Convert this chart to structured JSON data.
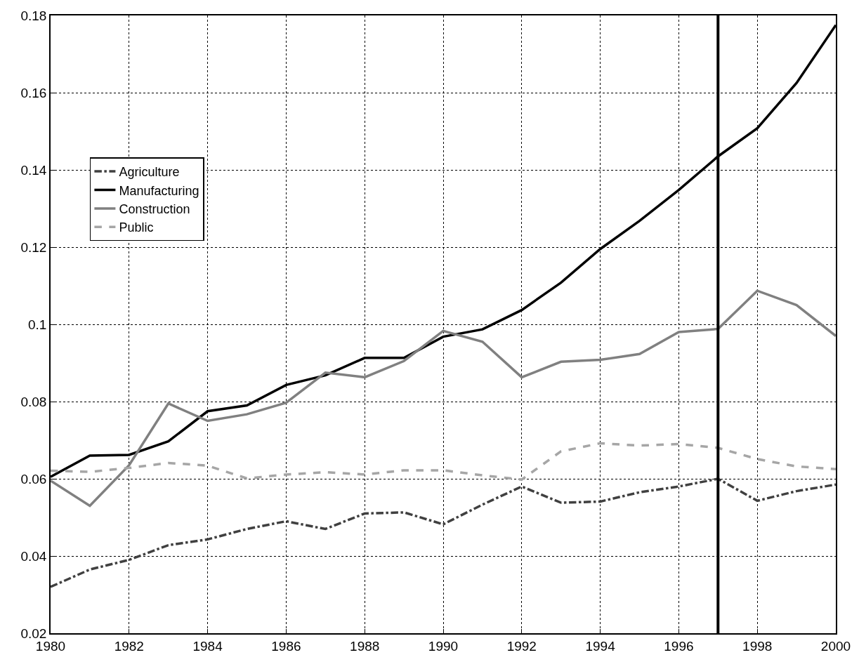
{
  "chart_data": {
    "type": "line",
    "x": [
      1980,
      1981,
      1982,
      1983,
      1984,
      1985,
      1986,
      1987,
      1988,
      1989,
      1990,
      1991,
      1992,
      1993,
      1994,
      1995,
      1996,
      1997,
      1998,
      1999,
      2000
    ],
    "series": [
      {
        "name": "Agriculture",
        "color": "#404040",
        "line_style": "dashdot",
        "values": [
          0.032,
          0.0365,
          0.039,
          0.0428,
          0.0443,
          0.047,
          0.049,
          0.047,
          0.051,
          0.0513,
          0.0482,
          0.0533,
          0.058,
          0.0538,
          0.0541,
          0.0565,
          0.058,
          0.06,
          0.0543,
          0.0568,
          0.0585
        ]
      },
      {
        "name": "Manufacturing",
        "color": "#000000",
        "line_style": "solid",
        "values": [
          0.0605,
          0.066,
          0.0662,
          0.0697,
          0.0775,
          0.079,
          0.0843,
          0.0868,
          0.0913,
          0.0913,
          0.0968,
          0.0987,
          0.1037,
          0.1108,
          0.1195,
          0.1268,
          0.1348,
          0.1435,
          0.1508,
          0.1625,
          0.1775
        ]
      },
      {
        "name": "Construction",
        "color": "#808080",
        "line_style": "solid",
        "values": [
          0.0595,
          0.053,
          0.0635,
          0.0795,
          0.075,
          0.0767,
          0.0797,
          0.0875,
          0.0863,
          0.0905,
          0.0983,
          0.0955,
          0.0863,
          0.0903,
          0.0908,
          0.0923,
          0.098,
          0.0988,
          0.1087,
          0.105,
          0.097
        ]
      },
      {
        "name": "Public",
        "color": "#a6a6a6",
        "line_style": "dashed",
        "values": [
          0.0621,
          0.0618,
          0.0628,
          0.0641,
          0.0634,
          0.0601,
          0.0611,
          0.0617,
          0.0611,
          0.0622,
          0.0622,
          0.0609,
          0.0598,
          0.0671,
          0.0692,
          0.0686,
          0.069,
          0.068,
          0.0651,
          0.0632,
          0.0625
        ]
      }
    ],
    "xlim": [
      1980,
      2000
    ],
    "xticks": [
      1980,
      1982,
      1984,
      1986,
      1988,
      1990,
      1992,
      1994,
      1996,
      1998,
      2000
    ],
    "ylim": [
      0.02,
      0.18
    ],
    "yticks": [
      0.02,
      0.04,
      0.06,
      0.08,
      {
        "value": 0.1,
        "label": "0.1"
      },
      0.12,
      0.14,
      0.16,
      0.18
    ],
    "ref_lines": [
      {
        "axis": "x",
        "value": 1997,
        "color": "#000000",
        "line_style": "solid"
      }
    ],
    "grid": true,
    "legend": "left",
    "marker": "none"
  }
}
